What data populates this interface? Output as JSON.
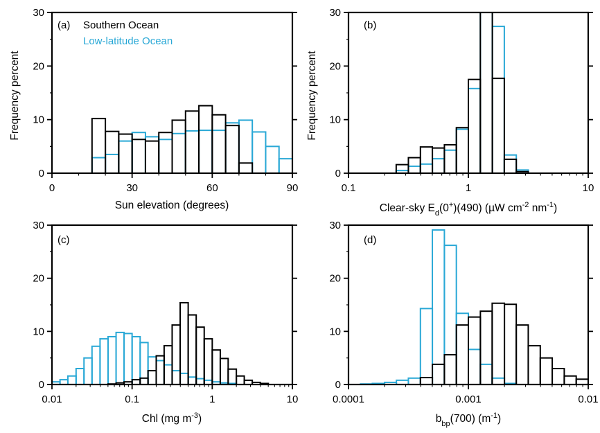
{
  "chart_data": [
    {
      "type": "bar",
      "panel": "(a)",
      "xlabel": "Sun elevation (degrees)",
      "ylabel": "Frequency percent",
      "xscale": "linear",
      "xlim": [
        0,
        90
      ],
      "ylim": [
        0,
        30
      ],
      "xticks": [
        "0",
        "30",
        "60",
        "90"
      ],
      "yticks": [
        "0",
        "10",
        "20",
        "30"
      ],
      "legend": {
        "placement": "top-left",
        "entries": [
          "Southern Ocean",
          "Low-latitude Ocean"
        ]
      },
      "colors": {
        "Southern Ocean": "#000000",
        "Low-latitude Ocean": "#29a8d6"
      },
      "bin_edges": [
        15,
        20,
        25,
        30,
        35,
        40,
        45,
        50,
        55,
        60,
        65,
        70,
        75,
        80,
        85,
        90
      ],
      "series": [
        {
          "name": "Low-latitude Ocean",
          "values": [
            2.9,
            3.5,
            6.0,
            7.6,
            6.8,
            6.3,
            7.4,
            7.9,
            8.0,
            8.0,
            9.4,
            9.9,
            7.7,
            5.0,
            2.7
          ]
        },
        {
          "name": "Southern Ocean",
          "values": [
            10.2,
            7.8,
            7.3,
            6.3,
            6.0,
            7.6,
            9.9,
            11.6,
            12.6,
            10.9,
            8.9,
            1.9,
            0,
            0,
            0
          ]
        }
      ]
    },
    {
      "type": "bar",
      "panel": "(b)",
      "xlabel_prefix": "Clear-sky E",
      "xlabel_sub": "d",
      "xlabel_mid": "(0",
      "xlabel_sup": "+",
      "xlabel_after": ")(490) (µW cm",
      "xlabel_sup2": "-2",
      "xlabel_after2": " nm",
      "xlabel_sup3": "-1",
      "xlabel_end": ")",
      "ylabel": "Frequency percent",
      "xscale": "log",
      "xlim": [
        0.1,
        10
      ],
      "ylim": [
        0,
        30
      ],
      "xticks": [
        "0.1",
        "1",
        "10"
      ],
      "yticks": [
        "0",
        "10",
        "20",
        "30"
      ],
      "bin_edges": [
        0.25,
        0.316,
        0.398,
        0.501,
        0.631,
        0.794,
        1.0,
        1.259,
        1.585,
        1.995,
        2.512,
        3.162
      ],
      "series": [
        {
          "name": "Low-latitude Ocean",
          "values": [
            0.5,
            1.3,
            1.7,
            2.7,
            4.3,
            8.2,
            15.8,
            30,
            27.4,
            3.4,
            0.6
          ]
        },
        {
          "name": "Southern Ocean",
          "values": [
            1.6,
            2.9,
            4.9,
            4.7,
            5.3,
            8.5,
            17.5,
            30,
            17.7,
            2.6,
            0.3
          ]
        }
      ]
    },
    {
      "type": "bar",
      "panel": "(c)",
      "xlabel": "Chl (mg m",
      "xlabel_sup": "-3",
      "xlabel_end": ")",
      "ylabel": "",
      "xscale": "log",
      "xlim": [
        0.01,
        10
      ],
      "ylim": [
        0,
        30
      ],
      "xticks": [
        "0.01",
        "0.1",
        "1",
        "10"
      ],
      "yticks": [
        "0",
        "10",
        "20",
        "30"
      ],
      "bin_edges": [
        0.01,
        0.0126,
        0.0158,
        0.02,
        0.0251,
        0.0316,
        0.0398,
        0.0501,
        0.0631,
        0.0794,
        0.1,
        0.126,
        0.158,
        0.2,
        0.251,
        0.316,
        0.398,
        0.501,
        0.631,
        0.794,
        1.0,
        1.26,
        1.58,
        2.0,
        2.51,
        3.16,
        3.98,
        5.01,
        6.31,
        7.94,
        10
      ],
      "series": [
        {
          "name": "Low-latitude Ocean",
          "values": [
            0.5,
            0.9,
            1.6,
            3.0,
            5.0,
            7.2,
            8.6,
            9.0,
            9.8,
            9.6,
            9.0,
            7.9,
            5.2,
            4.5,
            3.7,
            2.6,
            2.1,
            1.4,
            1.1,
            0.8,
            0.5,
            0.3,
            0.2,
            0,
            0,
            0,
            0,
            0,
            0,
            0
          ]
        },
        {
          "name": "Southern Ocean",
          "values": [
            0,
            0,
            0,
            0,
            0,
            0,
            0,
            0.1,
            0.3,
            0.5,
            0.9,
            1.2,
            2.6,
            5.4,
            7.3,
            11.2,
            15.4,
            13.1,
            10.8,
            8.6,
            6.5,
            4.9,
            2.9,
            1.6,
            0.8,
            0.4,
            0.2,
            0,
            0,
            0
          ]
        }
      ]
    },
    {
      "type": "bar",
      "panel": "(d)",
      "xlabel_b": "b",
      "xlabel_sub": "bp",
      "xlabel_mid": "(700) (m",
      "xlabel_sup": "-1",
      "xlabel_end": ")",
      "ylabel": "",
      "xscale": "log",
      "xlim": [
        0.0001,
        0.01
      ],
      "ylim": [
        0,
        30
      ],
      "xticks": [
        "0.0001",
        "0.001",
        "0.01"
      ],
      "yticks": [
        "0",
        "10",
        "20",
        "30"
      ],
      "bin_edges": [
        0.0001,
        0.000126,
        0.000158,
        0.0002,
        0.000251,
        0.000316,
        0.000398,
        0.000501,
        0.000631,
        0.000794,
        0.001,
        0.00126,
        0.00158,
        0.002,
        0.00251,
        0.00316,
        0.00398,
        0.00501,
        0.00631,
        0.00794,
        0.01
      ],
      "series": [
        {
          "name": "Low-latitude Ocean",
          "values": [
            0,
            0.1,
            0.2,
            0.4,
            0.8,
            1.2,
            14.3,
            29.1,
            26.2,
            13.4,
            6.6,
            3.8,
            1.2,
            0.2,
            0,
            0,
            0,
            0,
            0,
            0
          ]
        },
        {
          "name": "Southern Ocean",
          "values": [
            0,
            0,
            0,
            0,
            0,
            0,
            1.3,
            3.8,
            5.6,
            11.2,
            12.7,
            13.8,
            15.3,
            15.1,
            11.2,
            7.3,
            5.0,
            3.0,
            1.6,
            1.0
          ]
        }
      ]
    }
  ]
}
